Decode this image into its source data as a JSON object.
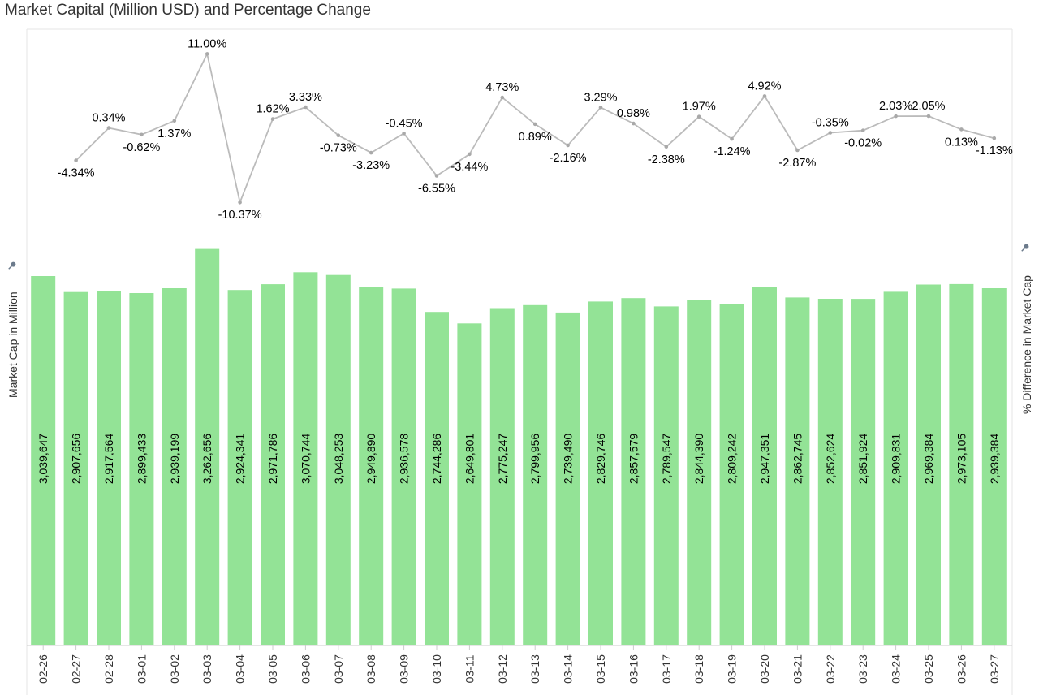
{
  "chart_data": {
    "type": "bar+line",
    "title": "Market Capital (Million USD) and Percentage Change",
    "ylabel_left": "Market Cap in Million",
    "ylabel_right": "% Difference in Market Cap",
    "categories": [
      "02-26",
      "02-27",
      "02-28",
      "03-01",
      "03-02",
      "03-03",
      "03-04",
      "03-05",
      "03-06",
      "03-07",
      "03-08",
      "03-09",
      "03-10",
      "03-11",
      "03-12",
      "03-13",
      "03-14",
      "03-15",
      "03-16",
      "03-17",
      "03-18",
      "03-19",
      "03-20",
      "03-21",
      "03-22",
      "03-23",
      "03-24",
      "03-25",
      "03-26",
      "03-27"
    ],
    "bar_series": {
      "name": "Market Cap in Million",
      "values": [
        3039647,
        2907656,
        2917564,
        2899433,
        2939199,
        3262656,
        2924341,
        2971786,
        3070744,
        3048253,
        2949890,
        2936578,
        2744286,
        2649801,
        2775247,
        2799956,
        2739490,
        2829746,
        2857579,
        2789547,
        2844390,
        2809242,
        2947351,
        2862745,
        2852624,
        2851924,
        2909831,
        2969384,
        2973105,
        2939384
      ],
      "labels": [
        "3,039,647",
        "2,907,656",
        "2,917,564",
        "2,899,433",
        "2,939,199",
        "3,262,656",
        "2,924,341",
        "2,971,786",
        "3,070,744",
        "3,048,253",
        "2,949,890",
        "2,936,578",
        "2,744,286",
        "2,649,801",
        "2,775,247",
        "2,799,956",
        "2,739,490",
        "2,829,746",
        "2,857,579",
        "2,789,547",
        "2,844,390",
        "2,809,242",
        "2,947,351",
        "2,862,745",
        "2,852,624",
        "2,851,924",
        "2,909,831",
        "2,969,384",
        "2,973,105",
        "2,939,384"
      ],
      "color": "#93e396"
    },
    "line_series": {
      "name": "% Difference in Market Cap",
      "values": [
        -4.34,
        0.34,
        -0.62,
        1.37,
        11.0,
        -10.37,
        1.62,
        3.33,
        -0.73,
        -3.23,
        -0.45,
        -6.55,
        -3.44,
        4.73,
        0.89,
        -2.16,
        3.29,
        0.98,
        -2.38,
        1.97,
        -1.24,
        4.92,
        -2.87,
        -0.35,
        -0.02,
        2.03,
        2.05,
        0.13,
        -1.13
      ],
      "labels": [
        "-4.34%",
        "0.34%",
        "-0.62%",
        "1.37%",
        "11.00%",
        "-10.37%",
        "1.62%",
        "3.33%",
        "-0.73%",
        "-3.23%",
        "-0.45%",
        "-6.55%",
        "-3.44%",
        "4.73%",
        "0.89%",
        "-2.16%",
        "3.29%",
        "0.98%",
        "-2.38%",
        "1.97%",
        "-1.24%",
        "4.92%",
        "-2.87%",
        "-0.35%",
        "-0.02%",
        "2.03%",
        "2.05%",
        "0.13%",
        "-1.13%"
      ],
      "label_position": [
        "below",
        "above",
        "below",
        "below",
        "above",
        "below",
        "above",
        "above",
        "below",
        "below",
        "above",
        "below",
        "below",
        "above",
        "below",
        "below",
        "above",
        "above",
        "below",
        "above",
        "below",
        "above",
        "below",
        "above",
        "below",
        "above",
        "above",
        "below",
        "below"
      ],
      "color": "#bbbbbb"
    },
    "ylim_left": [
      0,
      3400000
    ],
    "ylim_right": [
      -12,
      12
    ],
    "grid": false,
    "legend": "none"
  }
}
